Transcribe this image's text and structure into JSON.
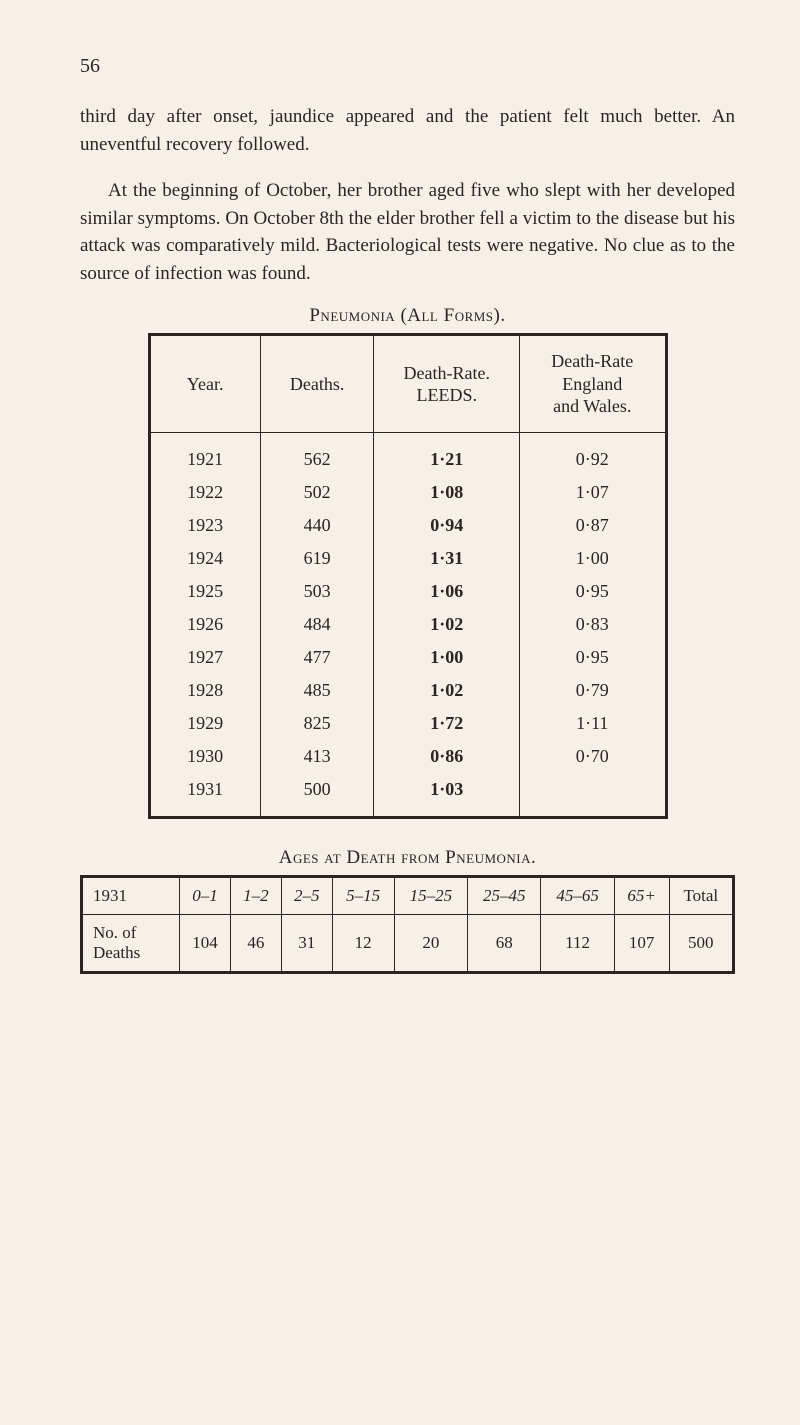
{
  "pageNumber": "56",
  "para1": "third day after onset, jaundice appeared and the patient felt much better.  An uneventful recovery followed.",
  "para2": "At the beginning of October, her brother aged five who slept with her developed similar symptoms.  On October 8th the elder brother fell a victim to the disease but his attack was comparatively mild.  Bacteriological tests were negative.  No clue as to the source of infection was found.",
  "table1": {
    "title": "Pneumonia (All Forms).",
    "columns": [
      "Year.",
      "Deaths.",
      "Death-Rate.\nLEEDS.",
      "Death-Rate\nEngland\nand Wales."
    ],
    "rows": [
      [
        "1921",
        "562",
        "1·21",
        "0·92"
      ],
      [
        "1922",
        "502",
        "1·08",
        "1·07"
      ],
      [
        "1923",
        "440",
        "0·94",
        "0·87"
      ],
      [
        "1924",
        "619",
        "1·31",
        "1·00"
      ],
      [
        "1925",
        "503",
        "1·06",
        "0·95"
      ],
      [
        "1926",
        "484",
        "1·02",
        "0·83"
      ],
      [
        "1927",
        "477",
        "1·00",
        "0·95"
      ],
      [
        "1928",
        "485",
        "1·02",
        "0·79"
      ],
      [
        "1929",
        "825",
        "1·72",
        "1·11"
      ],
      [
        "1930",
        "413",
        "0·86",
        "0·70"
      ],
      [
        "1931",
        "500",
        "1·03",
        ""
      ]
    ],
    "boldCol": 2,
    "colWidths": [
      "110px",
      "110px",
      "150px",
      "150px"
    ]
  },
  "table2": {
    "title": "Ages at Death from Pneumonia.",
    "headerRow": [
      "1931",
      "0–1",
      "1–2",
      "2–5",
      "5–15",
      "15–25",
      "25–45",
      "45–65",
      "65+",
      "Total"
    ],
    "dataRowLabel": "No. of\nDeaths",
    "dataRow": [
      "104",
      "46",
      "31",
      "12",
      "20",
      "68",
      "112",
      "107",
      "500"
    ]
  },
  "colors": {
    "background": "#f5f0e8",
    "text": "#2a2520",
    "border": "#2a2520"
  }
}
